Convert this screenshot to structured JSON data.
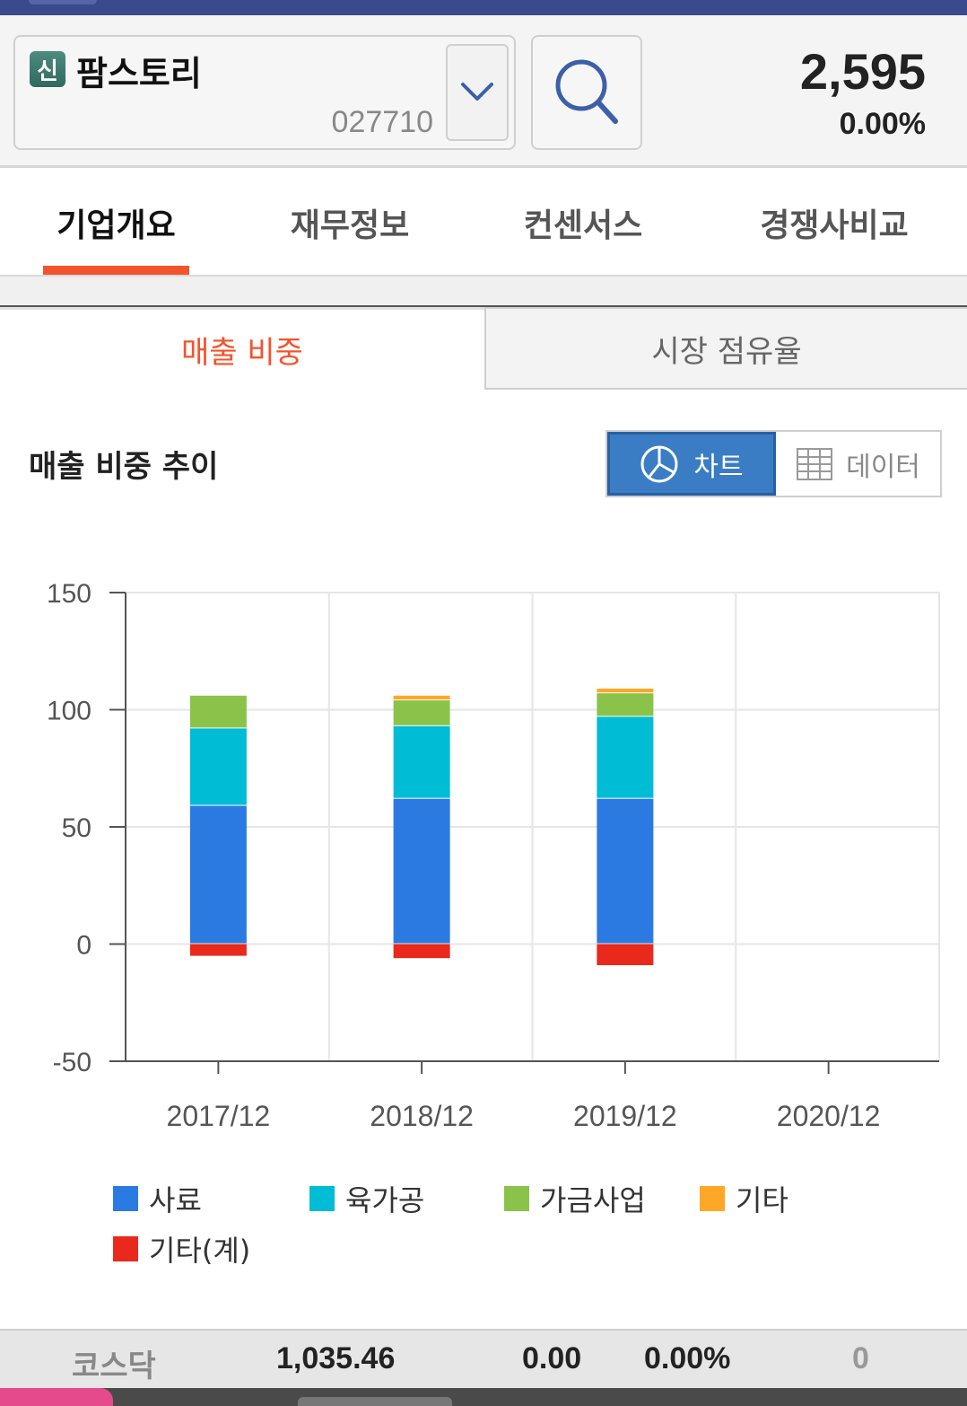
{
  "header": {
    "badge": "신",
    "stock_name": "팜스토리",
    "stock_code": "027710",
    "price": "2,595",
    "change_pct": "0.00%",
    "icons": [
      "chevron-down-icon",
      "search-icon"
    ]
  },
  "main_tabs": [
    "기업개요",
    "재무정보",
    "컨센서스",
    "경쟁사비교"
  ],
  "main_tab_active": 0,
  "sub_tabs": {
    "active": "매출 비중",
    "inactive": "시장 점유율"
  },
  "section": {
    "title": "매출 비중 추이",
    "toggle_chart": "차트",
    "toggle_data": "데이터"
  },
  "colors": {
    "accent": "#f2542d",
    "toggle_active": "#3a7dc4"
  },
  "chart_data": {
    "type": "bar",
    "stacked": true,
    "categories": [
      "2017/12",
      "2018/12",
      "2019/12",
      "2020/12"
    ],
    "ylim": [
      -50,
      150
    ],
    "yticks": [
      150,
      100,
      50,
      0,
      -50
    ],
    "grid": true,
    "legend_position": "bottom",
    "series": [
      {
        "name": "사료",
        "color": "#2a7ae2",
        "values": [
          59,
          62,
          62,
          null
        ]
      },
      {
        "name": "육가공",
        "color": "#00bcd4",
        "values": [
          33,
          31,
          35,
          null
        ]
      },
      {
        "name": "가금사업",
        "color": "#8bc34a",
        "values": [
          14,
          11,
          10,
          null
        ]
      },
      {
        "name": "기타",
        "color": "#ffa726",
        "values": [
          0,
          2,
          2,
          null
        ]
      },
      {
        "name": "기타(계)",
        "color": "#e8291c",
        "values": [
          -5,
          -6,
          -9,
          null
        ]
      }
    ]
  },
  "footer": {
    "index_name": "코스닥",
    "index_value": "1,035.46",
    "index_change": "0.00",
    "index_change_pct": "0.00%",
    "extra": "0"
  }
}
